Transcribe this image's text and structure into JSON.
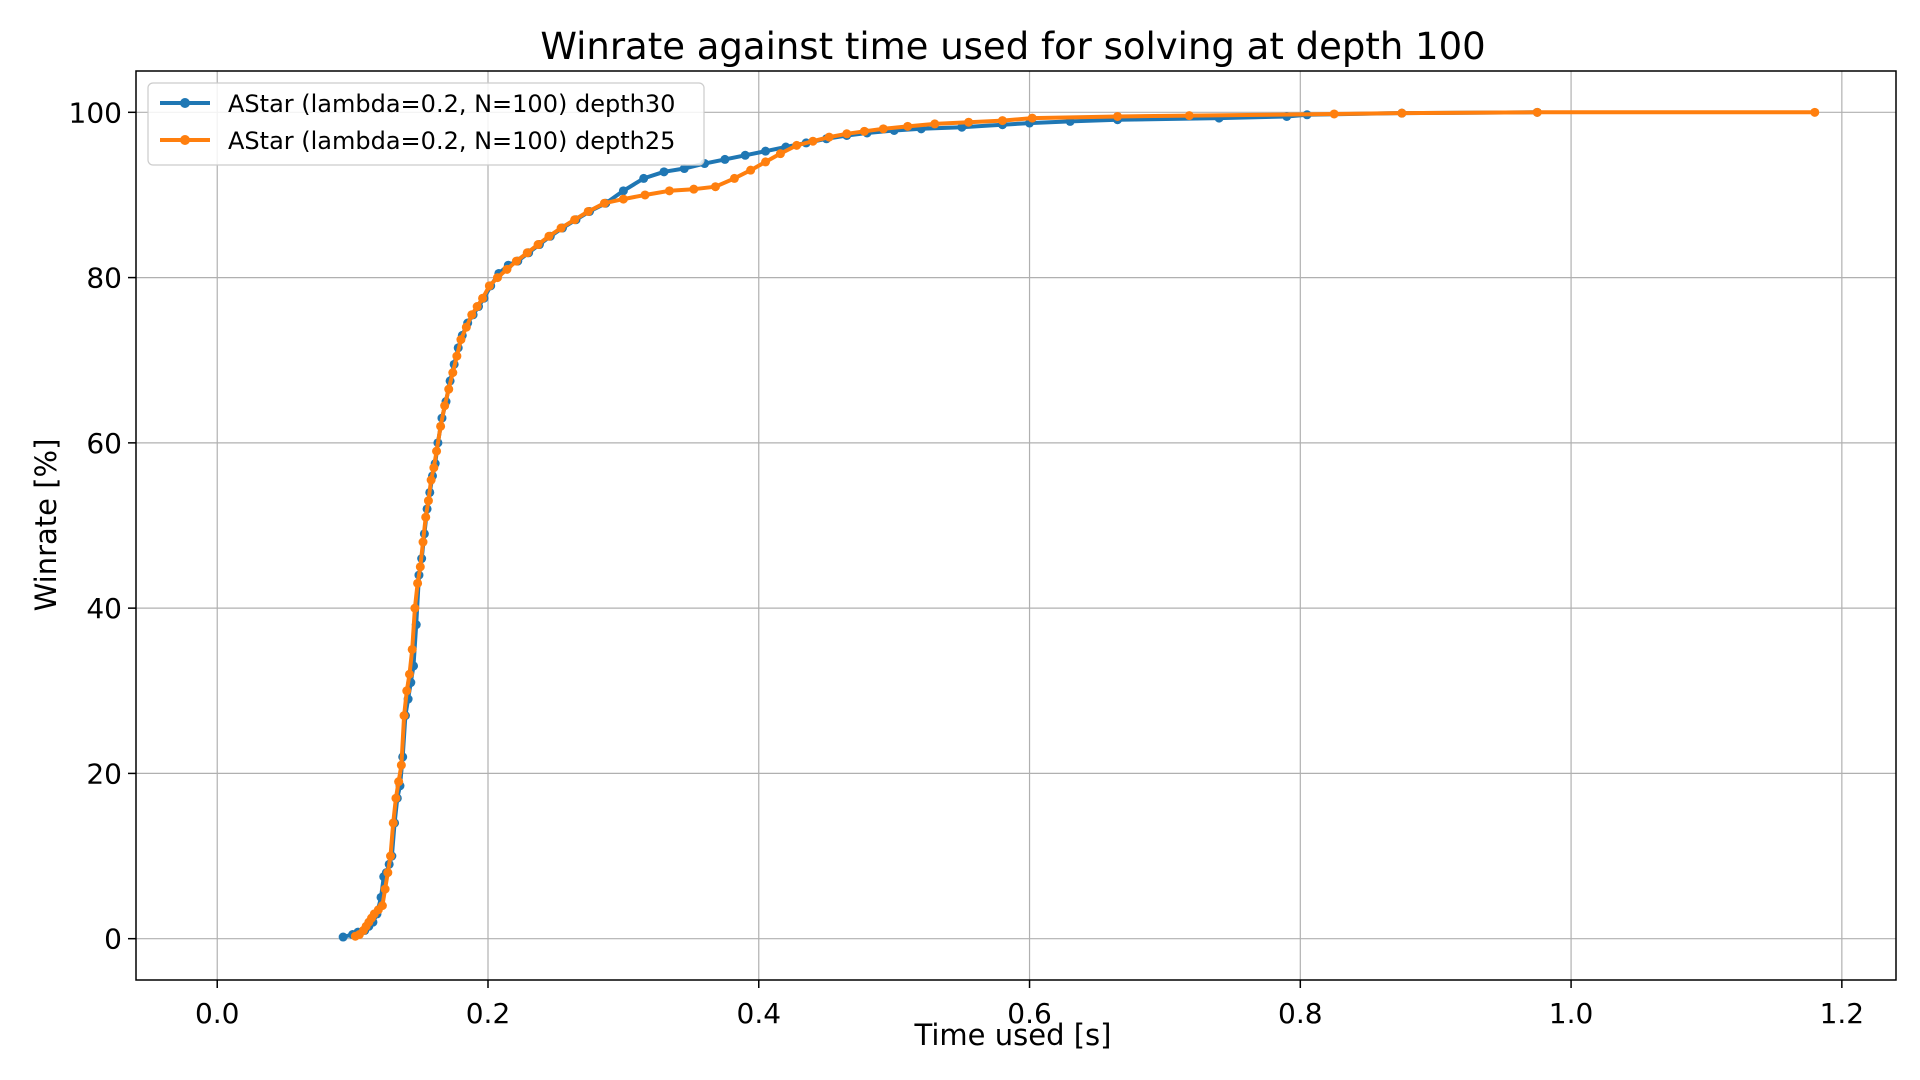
{
  "chart_data": {
    "type": "line",
    "title": "Winrate against time used for solving at depth 100",
    "xlabel": "Time used [s]",
    "ylabel": "Winrate [%]",
    "xlim": [
      -0.06,
      1.24
    ],
    "ylim": [
      -5,
      105
    ],
    "x_ticks": [
      0.0,
      0.2,
      0.4,
      0.6,
      0.8,
      1.0,
      1.2
    ],
    "x_tick_labels": [
      "0.0",
      "0.2",
      "0.4",
      "0.6",
      "0.8",
      "1.0",
      "1.2"
    ],
    "y_ticks": [
      0,
      20,
      40,
      60,
      80,
      100
    ],
    "y_tick_labels": [
      "0",
      "20",
      "40",
      "60",
      "80",
      "100"
    ],
    "grid": true,
    "legend_position": "top-left",
    "series": [
      {
        "name": "AStar (lambda=0.2, N=100) depth30",
        "color": "#1f77b4",
        "x": [
          0.093,
          0.1,
          0.104,
          0.109,
          0.112,
          0.115,
          0.118,
          0.121,
          0.123,
          0.125,
          0.127,
          0.129,
          0.131,
          0.133,
          0.135,
          0.137,
          0.139,
          0.141,
          0.143,
          0.145,
          0.147,
          0.149,
          0.151,
          0.153,
          0.155,
          0.157,
          0.159,
          0.161,
          0.163,
          0.166,
          0.169,
          0.172,
          0.175,
          0.178,
          0.181,
          0.185,
          0.189,
          0.193,
          0.197,
          0.202,
          0.208,
          0.215,
          0.222,
          0.23,
          0.238,
          0.246,
          0.255,
          0.265,
          0.275,
          0.287,
          0.3,
          0.315,
          0.33,
          0.345,
          0.36,
          0.375,
          0.39,
          0.405,
          0.42,
          0.435,
          0.45,
          0.465,
          0.48,
          0.5,
          0.52,
          0.55,
          0.58,
          0.6,
          0.63,
          0.665,
          0.74,
          0.79,
          0.805,
          0.875,
          0.975
        ],
        "y": [
          0.2,
          0.5,
          0.8,
          1.0,
          1.5,
          2.0,
          3.0,
          5.0,
          7.5,
          8.0,
          9.0,
          10.0,
          14.0,
          17.0,
          18.5,
          22.0,
          27.0,
          29.0,
          31.0,
          33.0,
          38.0,
          44.0,
          46.0,
          49.0,
          52.0,
          54.0,
          56.0,
          57.5,
          60.0,
          63.0,
          65.0,
          67.5,
          69.5,
          71.5,
          73.0,
          74.5,
          75.5,
          76.5,
          77.5,
          79.0,
          80.5,
          81.5,
          82.0,
          83.0,
          84.0,
          85.0,
          86.0,
          87.0,
          88.0,
          89.0,
          90.5,
          92.0,
          92.8,
          93.2,
          93.8,
          94.3,
          94.8,
          95.3,
          95.8,
          96.3,
          96.8,
          97.2,
          97.5,
          97.8,
          98.0,
          98.2,
          98.5,
          98.7,
          98.9,
          99.1,
          99.3,
          99.5,
          99.7,
          99.9,
          100.0
        ]
      },
      {
        "name": "AStar (lambda=0.2, N=100) depth25",
        "color": "#ff7f0e",
        "x": [
          0.102,
          0.105,
          0.108,
          0.11,
          0.112,
          0.114,
          0.116,
          0.119,
          0.122,
          0.124,
          0.126,
          0.128,
          0.13,
          0.132,
          0.134,
          0.136,
          0.138,
          0.14,
          0.142,
          0.144,
          0.146,
          0.148,
          0.15,
          0.152,
          0.154,
          0.156,
          0.158,
          0.16,
          0.162,
          0.165,
          0.168,
          0.171,
          0.174,
          0.177,
          0.18,
          0.184,
          0.188,
          0.192,
          0.196,
          0.201,
          0.207,
          0.214,
          0.221,
          0.229,
          0.237,
          0.245,
          0.254,
          0.264,
          0.274,
          0.286,
          0.3,
          0.316,
          0.334,
          0.352,
          0.368,
          0.382,
          0.394,
          0.405,
          0.416,
          0.428,
          0.44,
          0.452,
          0.465,
          0.478,
          0.492,
          0.51,
          0.53,
          0.555,
          0.58,
          0.602,
          0.665,
          0.718,
          0.825,
          0.875,
          0.975,
          1.18
        ],
        "y": [
          0.3,
          0.5,
          1.0,
          1.5,
          2.0,
          2.5,
          3.0,
          3.5,
          4.0,
          6.0,
          8.0,
          10.0,
          14.0,
          17.0,
          19.0,
          21.0,
          27.0,
          30.0,
          32.0,
          35.0,
          40.0,
          43.0,
          45.0,
          48.0,
          51.0,
          53.0,
          55.5,
          57.0,
          59.0,
          62.0,
          64.5,
          66.5,
          68.5,
          70.5,
          72.5,
          74.0,
          75.5,
          76.5,
          77.5,
          79.0,
          80.0,
          81.0,
          82.0,
          83.0,
          84.0,
          85.0,
          86.0,
          87.0,
          88.0,
          89.0,
          89.5,
          90.0,
          90.5,
          90.7,
          91.0,
          92.0,
          93.0,
          94.0,
          95.0,
          96.0,
          96.5,
          97.0,
          97.4,
          97.7,
          98.0,
          98.3,
          98.6,
          98.8,
          99.0,
          99.3,
          99.5,
          99.6,
          99.8,
          99.9,
          100.0,
          100.0
        ]
      }
    ]
  }
}
